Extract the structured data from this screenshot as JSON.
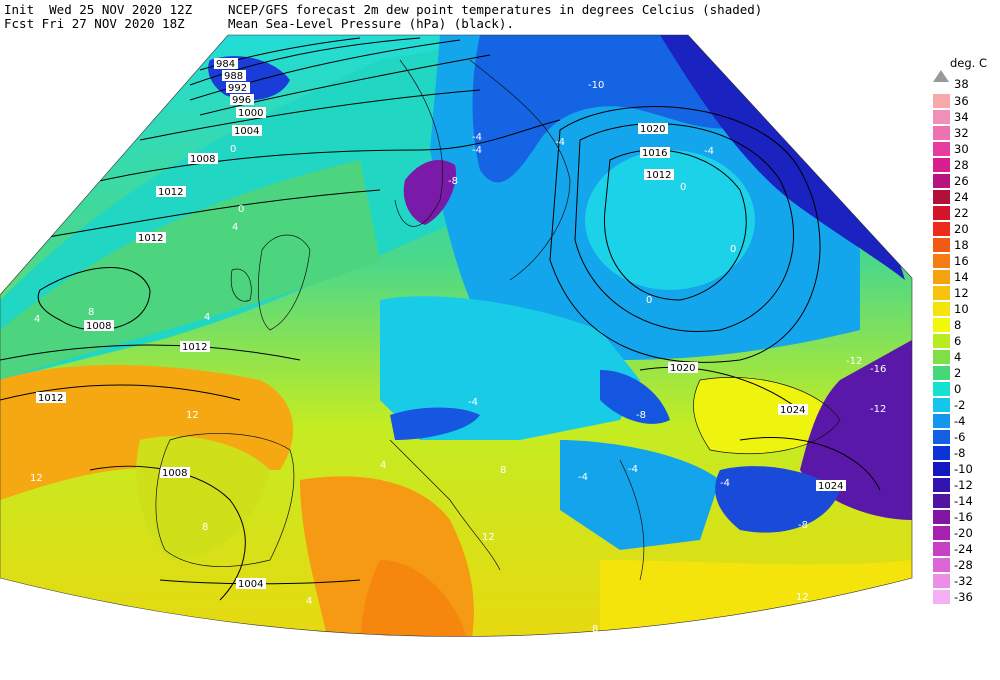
{
  "header": {
    "init": "Init  Wed 25 NOV 2020 12Z",
    "fcst": "Fcst Fri 27 NOV 2020 18Z",
    "title1": "NCEP/GFS forecast 2m dew point temperatures in degrees Celcius (shaded)",
    "title2": "Mean Sea-Level Pressure (hPa) (black)."
  },
  "legend": {
    "unit": "deg. C",
    "top_label": "38",
    "entries": [
      {
        "label": "36",
        "color": "#f7a8a8"
      },
      {
        "label": "34",
        "color": "#f090b8"
      },
      {
        "label": "32",
        "color": "#ec72b0"
      },
      {
        "label": "30",
        "color": "#e63ca0"
      },
      {
        "label": "28",
        "color": "#d81e8e"
      },
      {
        "label": "26",
        "color": "#b81480"
      },
      {
        "label": "24",
        "color": "#b0103a"
      },
      {
        "label": "22",
        "color": "#d4142a"
      },
      {
        "label": "20",
        "color": "#ee2a1c"
      },
      {
        "label": "18",
        "color": "#f25a14"
      },
      {
        "label": "16",
        "color": "#f47c12"
      },
      {
        "label": "14",
        "color": "#f5a20e"
      },
      {
        "label": "12",
        "color": "#f6c40c"
      },
      {
        "label": "10",
        "color": "#f4e40a"
      },
      {
        "label": "8",
        "color": "#f0f80c"
      },
      {
        "label": "6",
        "color": "#b8ec20"
      },
      {
        "label": "4",
        "color": "#7ce046"
      },
      {
        "label": "2",
        "color": "#46d878"
      },
      {
        "label": "0",
        "color": "#16e0d0"
      },
      {
        "label": "-2",
        "color": "#12c6ec"
      },
      {
        "label": "-4",
        "color": "#1496ee"
      },
      {
        "label": "-6",
        "color": "#1260e4"
      },
      {
        "label": "-8",
        "color": "#0c32d8"
      },
      {
        "label": "-10",
        "color": "#1418c0"
      },
      {
        "label": "-12",
        "color": "#3414b0"
      },
      {
        "label": "-14",
        "color": "#5014a0"
      },
      {
        "label": "-16",
        "color": "#8414a4"
      },
      {
        "label": "-20",
        "color": "#a820b0"
      },
      {
        "label": "-24",
        "color": "#c840c4"
      },
      {
        "label": "-28",
        "color": "#dc66d8"
      },
      {
        "label": "-32",
        "color": "#ec8ee8"
      },
      {
        "label": "-36",
        "color": "#f4b0f2"
      }
    ]
  },
  "isobar_labels": [
    "984",
    "988",
    "992",
    "996",
    "1000",
    "1004",
    "1008",
    "1012",
    "1012",
    "1008",
    "1012",
    "1012",
    "1008",
    "1004",
    "1020",
    "1016",
    "1012",
    "1020",
    "1024",
    "1024"
  ],
  "contour_labels": [
    "-4",
    "-4",
    "-4",
    "-4",
    "-4",
    "-4",
    "-4",
    "-4",
    "0",
    "0",
    "0",
    "0",
    "0",
    "4",
    "4",
    "4",
    "4",
    "4",
    "8",
    "8",
    "8",
    "8",
    "12",
    "12",
    "12",
    "12",
    "-8",
    "-8",
    "-8",
    "-16",
    "-12",
    "-12",
    "-10"
  ]
}
